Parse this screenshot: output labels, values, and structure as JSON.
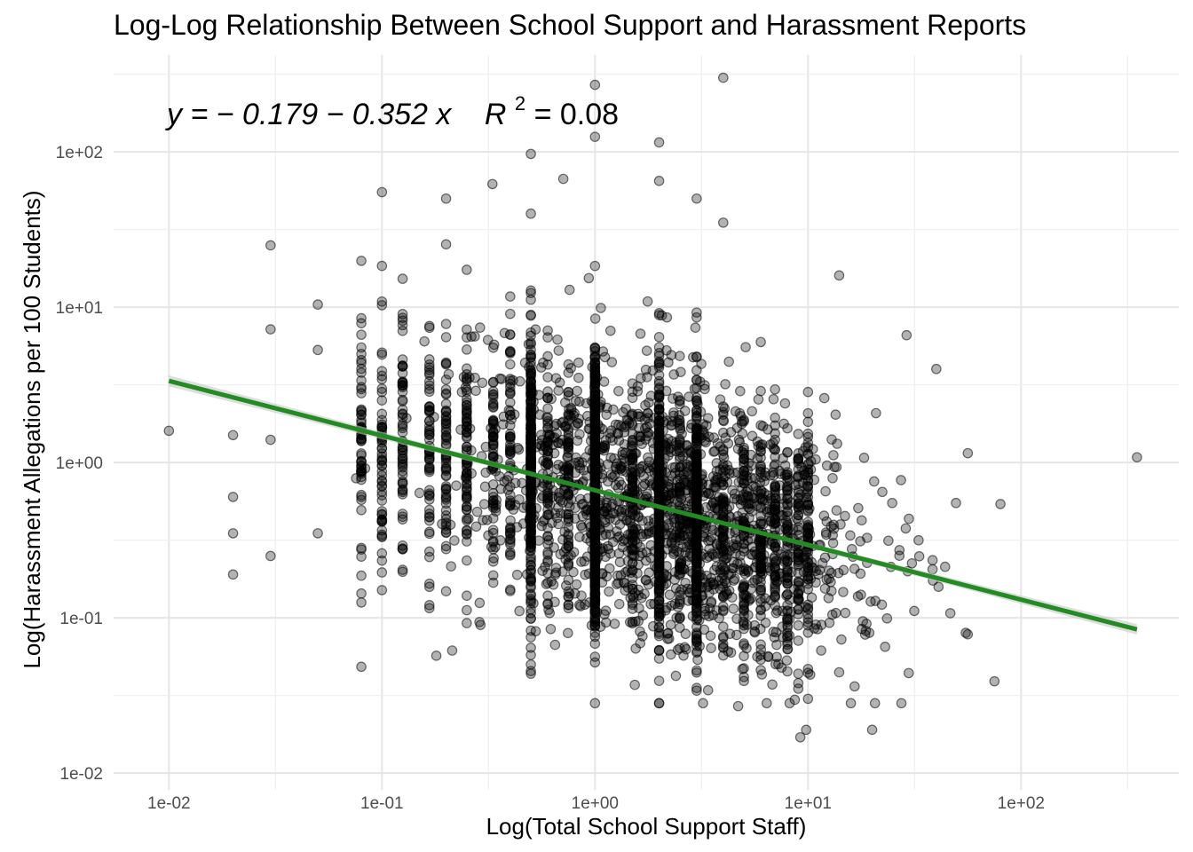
{
  "chart_data": {
    "type": "scatter",
    "title": "Log-Log Relationship Between School Support and Harassment Reports",
    "xlabel": "Log(Total School Support Staff)",
    "ylabel": "Log(Harassment Allegations per 100 Students)",
    "x_scale": "log10",
    "y_scale": "log10",
    "xlim": [
      0.0055,
      550
    ],
    "ylim": [
      0.0078,
      420
    ],
    "x_ticks": [
      0.01,
      0.1,
      1,
      10,
      100
    ],
    "x_tick_labels": [
      "1e-02",
      "1e-01",
      "1e+00",
      "1e+01",
      "1e+02"
    ],
    "y_ticks": [
      0.01,
      0.1,
      1,
      10,
      100
    ],
    "y_tick_labels": [
      "1e-02",
      "1e-01",
      "1e+00",
      "1e+01",
      "1e+02"
    ],
    "grid": true,
    "legend": "none",
    "annotation": {
      "equation": "y = − 0.179 − 0.352 x",
      "r2_label": "R",
      "r2_exp": "2",
      "r2_value": " = 0.08"
    },
    "regression": {
      "intercept_log10": -0.179,
      "slope_log10": -0.352,
      "x_range": [
        0.01,
        350
      ],
      "color": "#228B22",
      "ribbon_color": "#c8c8c8"
    },
    "point_color": "#000000",
    "point_alpha": 0.3,
    "notable_points": [
      {
        "x": 0.01,
        "y": 1.6
      },
      {
        "x": 0.02,
        "y": 1.5
      },
      {
        "x": 0.02,
        "y": 0.6
      },
      {
        "x": 0.02,
        "y": 0.35
      },
      {
        "x": 0.02,
        "y": 0.19
      },
      {
        "x": 0.03,
        "y": 25
      },
      {
        "x": 0.03,
        "y": 7.2
      },
      {
        "x": 0.03,
        "y": 1.4
      },
      {
        "x": 0.03,
        "y": 0.25
      },
      {
        "x": 0.05,
        "y": 10.4
      },
      {
        "x": 0.05,
        "y": 5.3
      },
      {
        "x": 0.05,
        "y": 0.35
      },
      {
        "x": 0.1,
        "y": 55
      },
      {
        "x": 0.2,
        "y": 50
      },
      {
        "x": 0.18,
        "y": 0.057
      },
      {
        "x": 0.29,
        "y": 0.09
      },
      {
        "x": 0.33,
        "y": 62
      },
      {
        "x": 0.5,
        "y": 97
      },
      {
        "x": 0.5,
        "y": 40
      },
      {
        "x": 0.5,
        "y": 0.075
      },
      {
        "x": 0.71,
        "y": 67
      },
      {
        "x": 1.0,
        "y": 270
      },
      {
        "x": 1.0,
        "y": 125
      },
      {
        "x": 1.0,
        "y": 0.08
      },
      {
        "x": 2.0,
        "y": 115
      },
      {
        "x": 2.0,
        "y": 65
      },
      {
        "x": 3.0,
        "y": 50
      },
      {
        "x": 4.0,
        "y": 300
      },
      {
        "x": 4.0,
        "y": 35
      },
      {
        "x": 4.7,
        "y": 0.027
      },
      {
        "x": 9.2,
        "y": 0.017
      },
      {
        "x": 9.8,
        "y": 0.019
      },
      {
        "x": 14,
        "y": 16
      },
      {
        "x": 20,
        "y": 0.019
      },
      {
        "x": 29,
        "y": 6.6
      },
      {
        "x": 40,
        "y": 4.0
      },
      {
        "x": 55,
        "y": 0.08
      },
      {
        "x": 75,
        "y": 0.039
      },
      {
        "x": 80,
        "y": 0.54
      },
      {
        "x": 350,
        "y": 1.08
      }
    ],
    "point_columns_x": [
      0.08,
      0.1,
      0.125,
      0.167,
      0.2,
      0.25,
      0.333,
      0.4,
      0.5,
      0.6,
      0.75,
      1,
      1.5,
      2,
      2.5,
      3,
      4,
      5,
      6,
      7,
      8,
      9,
      10
    ],
    "point_cloud": {
      "n_points": 4200,
      "x_log10_mean": 0.35,
      "x_log10_sd": 0.45,
      "residual_log10_sd": 0.42
    }
  }
}
